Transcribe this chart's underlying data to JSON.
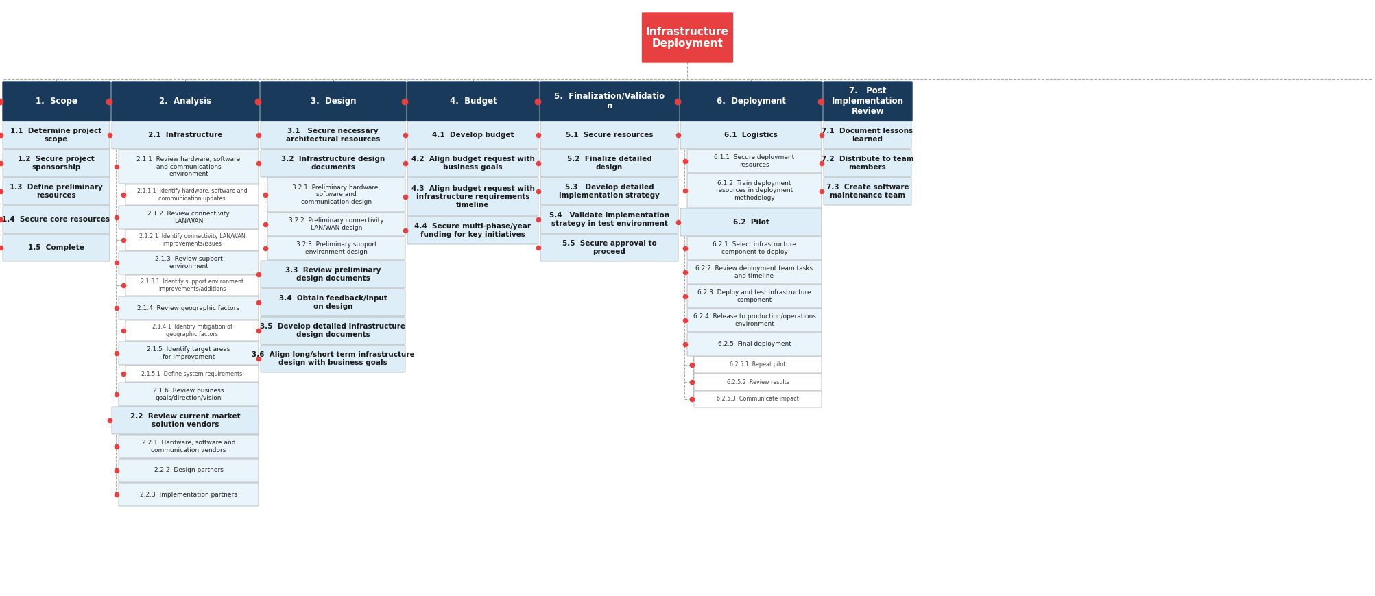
{
  "title": "Infrastructure\nDeployment",
  "title_bg": "#e84040",
  "title_fg": "white",
  "header_bg": "#1a3a5c",
  "header_fg": "white",
  "child_bg": "#ddeef8",
  "child_fg": "#1a1a1a",
  "subchild_bg": "#eaf5fb",
  "subchild_fg": "#222222",
  "level3_bg": "#ffffff",
  "level3_fg": "#444444",
  "connector_color": "#999999",
  "dot_color": "#e84040",
  "fig_w": 20.05,
  "fig_h": 8.69,
  "columns": [
    {
      "header": "1.  Scope",
      "items": [
        {
          "level": 1,
          "text": "1.1  Determine project\nscope"
        },
        {
          "level": 1,
          "text": "1.2  Secure project\nsponsorship"
        },
        {
          "level": 1,
          "text": "1.3  Define preliminary\nresources"
        },
        {
          "level": 1,
          "text": "1.4  Secure core resources"
        },
        {
          "level": 1,
          "text": "1.5  Complete"
        }
      ]
    },
    {
      "header": "2.  Analysis",
      "items": [
        {
          "level": 1,
          "text": "2.1  Infrastructure"
        },
        {
          "level": 2,
          "text": "2.1.1  Review hardware, software\nand communications\nenvironment"
        },
        {
          "level": 3,
          "text": "2.1.1.1  Identify hardware, software and\ncommunication updates"
        },
        {
          "level": 2,
          "text": "2.1.2  Review connectivity\nLAN/WAN"
        },
        {
          "level": 3,
          "text": "2.1.2.1  Identify connectivity LAN/WAN\nimprovements/issues"
        },
        {
          "level": 2,
          "text": "2.1.3  Review support\nenvironment"
        },
        {
          "level": 3,
          "text": "2.1.3.1  Identify support environment\nimprovements/additions"
        },
        {
          "level": 2,
          "text": "2.1.4  Review geographic factors"
        },
        {
          "level": 3,
          "text": "2.1.4.1  Identify mitigation of\ngeographic factors"
        },
        {
          "level": 2,
          "text": "2.1.5  Identify target areas\nfor Improvement"
        },
        {
          "level": 3,
          "text": "2.1.5.1  Define system requirements"
        },
        {
          "level": 2,
          "text": "2.1.6  Review business\ngoals/direction/vision"
        },
        {
          "level": 1,
          "text": "2.2  Review current market\nsolution vendors"
        },
        {
          "level": 2,
          "text": "2.2.1  Hardware, software and\ncommunication vendors"
        },
        {
          "level": 2,
          "text": "2.2.2  Design partners"
        },
        {
          "level": 2,
          "text": "2.2.3  Implementation partners"
        }
      ]
    },
    {
      "header": "3.  Design",
      "items": [
        {
          "level": 1,
          "text": "3.1   Secure necessary\narchitectural resources"
        },
        {
          "level": 1,
          "text": "3.2  Infrastructure design\ndocuments"
        },
        {
          "level": 2,
          "text": "3.2.1  Preliminary hardware,\nsoftware and\ncommunication design"
        },
        {
          "level": 2,
          "text": "3.2.2  Preliminary connectivity\nLAN/WAN design"
        },
        {
          "level": 2,
          "text": "3.2.3  Preliminary support\nenvironment design"
        },
        {
          "level": 1,
          "text": "3.3  Review preliminary\ndesign documents"
        },
        {
          "level": 1,
          "text": "3.4  Obtain feedback/input\non design"
        },
        {
          "level": 1,
          "text": "3.5  Develop detailed infrastructure\ndesign documents"
        },
        {
          "level": 1,
          "text": "3.6  Align long/short term infrastructure\ndesign with business goals"
        }
      ]
    },
    {
      "header": "4.  Budget",
      "items": [
        {
          "level": 1,
          "text": "4.1  Develop budget"
        },
        {
          "level": 1,
          "text": "4.2  Align budget request with\nbusiness goals"
        },
        {
          "level": 1,
          "text": "4.3  Align budget request with\ninfrastructure requirements\ntimeline"
        },
        {
          "level": 1,
          "text": "4.4  Secure multi-phase/year\nfunding for key initiatives"
        }
      ]
    },
    {
      "header": "5.  Finalization/Validatio\nn",
      "items": [
        {
          "level": 1,
          "text": "5.1  Secure resources"
        },
        {
          "level": 1,
          "text": "5.2  Finalize detailed\ndesign"
        },
        {
          "level": 1,
          "text": "5.3   Develop detailed\nimplementation strategy"
        },
        {
          "level": 1,
          "text": "5.4   Validate implementation\nstrategy in test environment"
        },
        {
          "level": 1,
          "text": "5.5  Secure approval to\nproceed"
        }
      ]
    },
    {
      "header": "6.  Deployment",
      "items": [
        {
          "level": 1,
          "text": "6.1  Logistics"
        },
        {
          "level": 2,
          "text": "6.1.1  Secure deployment\nresources"
        },
        {
          "level": 2,
          "text": "6.1.2  Train deployment\nresources in deployment\nmethodology"
        },
        {
          "level": 1,
          "text": "6.2  Pilot"
        },
        {
          "level": 2,
          "text": "6.2.1  Select infrastructure\ncomponent to deploy"
        },
        {
          "level": 2,
          "text": "6.2.2  Review deployment team tasks\nand timeline"
        },
        {
          "level": 2,
          "text": "6.2.3  Deploy and test infrastructure\ncomponent"
        },
        {
          "level": 2,
          "text": "6.2.4  Release to production/operations\nenvironment"
        },
        {
          "level": 2,
          "text": "6.2.5  Final deployment"
        },
        {
          "level": 3,
          "text": "6.2.5.1  Repeat pilot"
        },
        {
          "level": 3,
          "text": "6.2.5.2  Review results"
        },
        {
          "level": 3,
          "text": "6.2.5.3  Communicate impact"
        }
      ]
    },
    {
      "header": "7.   Post\nImplementation\nReview",
      "items": [
        {
          "level": 1,
          "text": "7.1  Document lessons\nlearned"
        },
        {
          "level": 1,
          "text": "7.2  Distribute to team\nmembers"
        },
        {
          "level": 1,
          "text": "7.3  Create software\nmaintenance team"
        }
      ]
    }
  ]
}
